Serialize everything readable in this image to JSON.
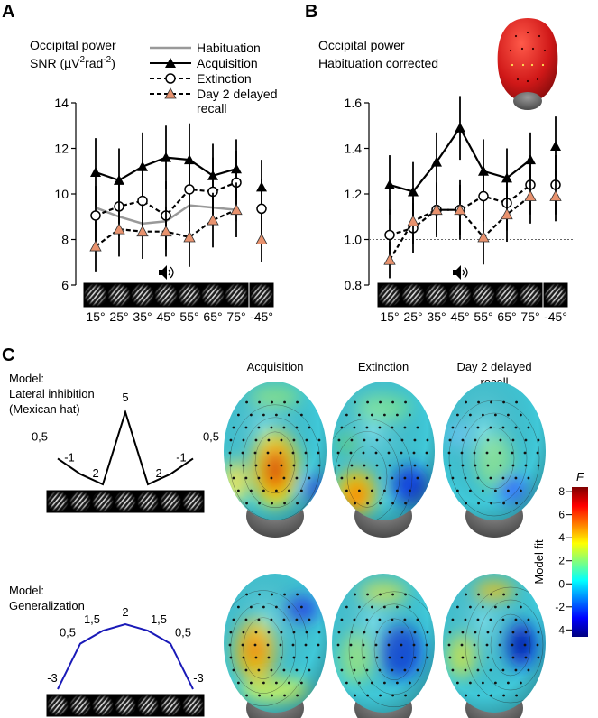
{
  "panel_labels": {
    "a": "A",
    "b": "B",
    "c": "C"
  },
  "colors": {
    "habituation": "#999999",
    "acquisition": "#000000",
    "extinction": "#000000",
    "recall": "#000000",
    "recall_marker": "#e8926e",
    "generalization_curve": "#1a1ab8",
    "mexican_hat_curve": "#000000",
    "head_red": "#d42020"
  },
  "icons": {
    "speaker": "speaker-icon",
    "grating": "gabor-grating-icon",
    "head": "scalp-head-icon"
  },
  "chart_data": [
    {
      "id": "A",
      "type": "line",
      "title_line1": "Occipital power",
      "title_line2": "SNR (µV²rad⁻²)",
      "title_line2_parts": {
        "pre": "SNR (µV",
        "sup1": "2",
        "mid": "rad",
        "sup2": "-2",
        "post": ")"
      },
      "categories": [
        "15°",
        "25°",
        "35°",
        "45°",
        "55°",
        "65°",
        "75°"
      ],
      "extra_category": "-45°",
      "ylim": [
        6,
        14
      ],
      "yticks": [
        "6",
        "8",
        "10",
        "12",
        "14"
      ],
      "legend": [
        {
          "key": "hab",
          "label": "Habituation"
        },
        {
          "key": "acq",
          "label": "Acquisition"
        },
        {
          "key": "ext",
          "label": "Extinction"
        },
        {
          "key": "rec",
          "label": "Day 2 delayed",
          "label2": "recall"
        }
      ],
      "series": [
        {
          "key": "hab",
          "name": "Habituation",
          "values": [
            9.4,
            9.0,
            8.7,
            8.8,
            9.5,
            9.4,
            9.3
          ],
          "extra": 9.1,
          "err": [
            0.5,
            0.5,
            0.5,
            0.5,
            0.5,
            0.5,
            0.5
          ],
          "extra_err": 0.5
        },
        {
          "key": "acq",
          "name": "Acquisition",
          "values": [
            10.95,
            10.6,
            11.2,
            11.6,
            11.5,
            10.8,
            11.1
          ],
          "extra": 10.3,
          "err": [
            1.5,
            1.4,
            1.5,
            1.4,
            1.6,
            1.4,
            1.3
          ],
          "extra_err": 1.2
        },
        {
          "key": "ext",
          "name": "Extinction",
          "values": [
            9.05,
            9.45,
            9.7,
            9.05,
            10.2,
            10.1,
            10.5
          ],
          "extra": 9.35,
          "err": [
            1.3,
            1.3,
            1.5,
            1.5,
            1.4,
            1.5,
            1.4
          ],
          "extra_err": 1.3
        },
        {
          "key": "rec",
          "name": "Day 2 delayed recall",
          "values": [
            7.7,
            8.45,
            8.35,
            8.35,
            8.1,
            8.85,
            9.3
          ],
          "extra": 8.0,
          "err": [
            1.1,
            1.2,
            1.2,
            1.1,
            1.3,
            1.2,
            1.2
          ],
          "extra_err": 1.0
        }
      ],
      "speaker_at": "45°"
    },
    {
      "id": "B",
      "type": "line",
      "title_line1": "Occipital power",
      "title_line2": "Habituation corrected",
      "categories": [
        "15°",
        "25°",
        "35°",
        "45°",
        "55°",
        "65°",
        "75°"
      ],
      "extra_category": "-45°",
      "ylim": [
        0.8,
        1.6
      ],
      "yticks": [
        "0.8",
        "1.0",
        "1.2",
        "1.4",
        "1.6"
      ],
      "reference_line": 1.0,
      "series": [
        {
          "key": "acq",
          "name": "Acquisition",
          "values": [
            1.24,
            1.21,
            1.34,
            1.49,
            1.3,
            1.27,
            1.35
          ],
          "extra": 1.41,
          "err": [
            0.13,
            0.13,
            0.13,
            0.14,
            0.14,
            0.13,
            0.12
          ],
          "extra_err": 0.13
        },
        {
          "key": "ext",
          "name": "Extinction",
          "values": [
            1.02,
            1.05,
            1.13,
            1.13,
            1.19,
            1.16,
            1.24
          ],
          "extra": 1.24,
          "err": [
            0.11,
            0.11,
            0.12,
            0.13,
            0.11,
            0.12,
            0.13
          ],
          "extra_err": 0.13
        },
        {
          "key": "rec",
          "name": "Day 2 delayed recall",
          "values": [
            0.91,
            1.08,
            1.13,
            1.13,
            1.01,
            1.11,
            1.19
          ],
          "extra": 1.19,
          "err": [
            0.08,
            0.1,
            0.11,
            0.11,
            0.12,
            0.12,
            0.12
          ],
          "extra_err": 0.11
        }
      ],
      "speaker_at": "45°"
    }
  ],
  "panel_c": {
    "column_titles": [
      {
        "line1": "Acquisition",
        "line2": ""
      },
      {
        "line1": "Extinction",
        "line2": ""
      },
      {
        "line1": "Day 2 delayed",
        "line2": "recall"
      }
    ],
    "models": [
      {
        "key": "mexican",
        "title_lines": [
          "Model:",
          "Lateral inhibition",
          "(Mexican hat)"
        ],
        "weights": [
          0.5,
          -1,
          -2,
          5,
          -2,
          -1,
          0.5
        ],
        "weight_labels": [
          "0,5",
          "-1",
          "-2",
          "5",
          "-2",
          "-1",
          "0,5"
        ]
      },
      {
        "key": "general",
        "title_lines": [
          "Model:",
          "Generalization"
        ],
        "weights": [
          -3,
          0.5,
          1.5,
          2,
          1.5,
          0.5,
          -3
        ],
        "weight_labels": [
          "-3",
          "0,5",
          "1,5",
          "2",
          "1,5",
          "0,5",
          "-3"
        ]
      }
    ],
    "colorbar": {
      "title": "F",
      "label": "Model fit",
      "ticks": [
        "8",
        "6",
        "4",
        "2",
        "0",
        "-2",
        "-4"
      ],
      "range": [
        -4.6,
        8.4
      ],
      "colors": [
        "#00007f",
        "#0000ff",
        "#007fff",
        "#00ffff",
        "#7fff7f",
        "#ffff00",
        "#ff7f00",
        "#ff0000",
        "#7f0000"
      ]
    }
  }
}
